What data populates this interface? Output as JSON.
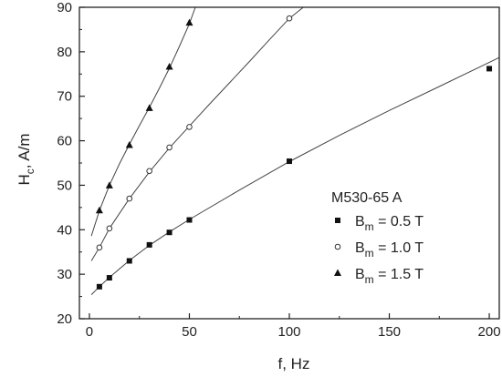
{
  "chart_data": {
    "type": "scatter",
    "xlabel": "f, Hz",
    "ylabel_main": "H",
    "ylabel_sub": "c",
    "ylabel_rest": ", A/m",
    "xlim": [
      -5,
      205
    ],
    "ylim": [
      20,
      90
    ],
    "xticks": [
      0,
      50,
      100,
      150,
      200
    ],
    "yticks": [
      20,
      30,
      40,
      50,
      60,
      70,
      80,
      90
    ],
    "legend_title": "M530-65 A",
    "legend_position": "right",
    "series": [
      {
        "name_main": "B",
        "name_sub": "m",
        "name_rest": " = 0.5 T",
        "marker": "square-filled",
        "x": [
          5,
          10,
          20,
          30,
          40,
          50,
          100,
          200
        ],
        "y": [
          27.2,
          29.2,
          33.0,
          36.6,
          39.4,
          42.2,
          55.4,
          76.2
        ],
        "fit_x": [
          1,
          5,
          10,
          20,
          30,
          40,
          50,
          75,
          100,
          125,
          150,
          175,
          205
        ],
        "fit_y": [
          25.4,
          27.2,
          29.3,
          33.1,
          36.5,
          39.5,
          42.3,
          48.9,
          55.3,
          61.2,
          66.8,
          72.2,
          78.7
        ]
      },
      {
        "name_main": "B",
        "name_sub": "m",
        "name_rest": " = 1.0 T",
        "marker": "circle-open",
        "x": [
          5,
          10,
          20,
          30,
          40,
          50,
          100
        ],
        "y": [
          36.0,
          40.3,
          47.0,
          53.2,
          58.5,
          63.1,
          87.5
        ],
        "fit_x": [
          1,
          5,
          10,
          20,
          30,
          40,
          50,
          60,
          70,
          80,
          90,
          100,
          107
        ],
        "fit_y": [
          33.0,
          36.0,
          40.3,
          47.0,
          53.0,
          58.4,
          63.3,
          68.2,
          73.0,
          77.8,
          82.7,
          87.5,
          90.0
        ]
      },
      {
        "name_main": "B",
        "name_sub": "m",
        "name_rest": " = 1.5 T",
        "marker": "triangle-filled",
        "x": [
          5,
          10,
          20,
          30,
          40,
          50
        ],
        "y": [
          44.3,
          49.9,
          59.0,
          67.3,
          76.6,
          86.5
        ],
        "fit_x": [
          1,
          5,
          10,
          15,
          20,
          25,
          30,
          35,
          40,
          45,
          50,
          53
        ],
        "fit_y": [
          38.6,
          44.3,
          50.0,
          54.8,
          59.2,
          63.4,
          67.5,
          71.8,
          76.3,
          81.2,
          86.3,
          90.0
        ]
      }
    ]
  }
}
